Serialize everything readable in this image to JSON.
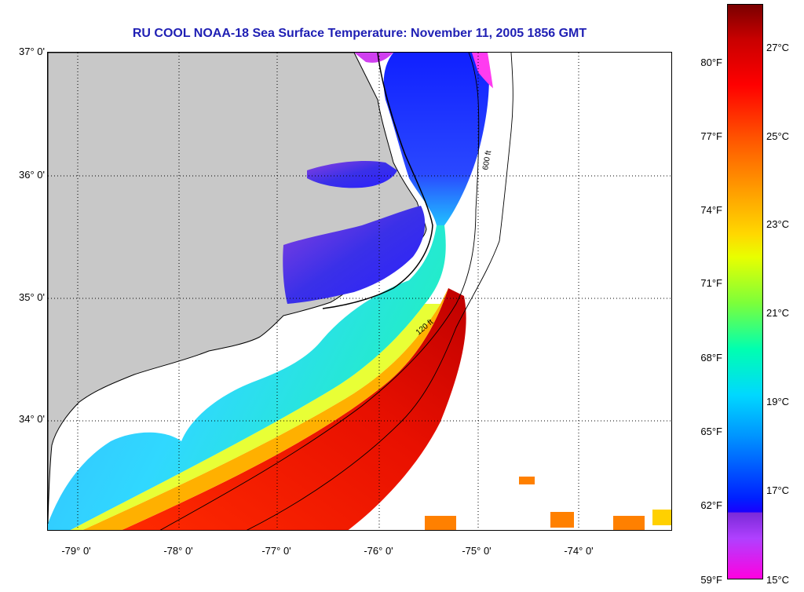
{
  "title": "RU COOL  NOAA-18  Sea Surface Temperature:  November 11, 2005 1856 GMT",
  "map": {
    "lat_ticks": [
      "37° 0'",
      "36° 0'",
      "35° 0'",
      "34° 0'"
    ],
    "lon_ticks": [
      "-79° 0'",
      "-78° 0'",
      "-77° 0'",
      "-76° 0'",
      "-75° 0'",
      "-74° 0'"
    ],
    "contour_labels": [
      "120 ft",
      "600 ft"
    ],
    "land_color": "#c8c8c8",
    "cloud_color": "#ffffff"
  },
  "colorbar": {
    "fahrenheit_labels": [
      "80°F",
      "77°F",
      "74°F",
      "71°F",
      "68°F",
      "65°F",
      "62°F",
      "59°F"
    ],
    "celsius_labels": [
      "27°C",
      "25°C",
      "23°C",
      "21°C",
      "19°C",
      "17°C",
      "15°C"
    ],
    "colors": {
      "warm": "#ff0000",
      "mid": "#ffd800",
      "cool": "#00d8ff",
      "cold": "#0020ff",
      "coldest": "#ff00e0"
    }
  }
}
